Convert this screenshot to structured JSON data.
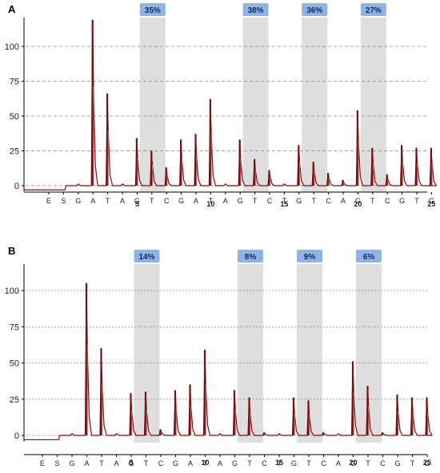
{
  "chart_data": [
    {
      "type": "line",
      "panel_label": "A",
      "ylim": [
        -3,
        120
      ],
      "yticks": [
        0,
        25,
        50,
        75,
        100
      ],
      "grid": "horizontal-dashed",
      "dispensation": [
        "E",
        "S",
        "G",
        "A",
        "T",
        "A",
        "G",
        "T",
        "C",
        "G",
        "A",
        "T",
        "A",
        "G",
        "T",
        "C",
        "T",
        "G",
        "T",
        "C",
        "A",
        "G",
        "T",
        "C",
        "G",
        "T",
        "G"
      ],
      "position_labels": [
        {
          "index": 6,
          "label": "5"
        },
        {
          "index": 11,
          "label": "10"
        },
        {
          "index": 16,
          "label": "15"
        },
        {
          "index": 21,
          "label": "20"
        },
        {
          "index": 26,
          "label": "25"
        }
      ],
      "highlights": [
        {
          "index": 7,
          "label": "35%"
        },
        {
          "index": 14,
          "label": "38%"
        },
        {
          "index": 18,
          "label": "36%"
        },
        {
          "index": 22,
          "label": "27%"
        }
      ],
      "peaks": [
        {
          "index": 3,
          "y": 119
        },
        {
          "index": 4,
          "y": 66
        },
        {
          "index": 6,
          "y": 34
        },
        {
          "index": 7,
          "y": 25
        },
        {
          "index": 8,
          "y": 13
        },
        {
          "index": 9,
          "y": 33
        },
        {
          "index": 10,
          "y": 37
        },
        {
          "index": 11,
          "y": 62
        },
        {
          "index": 13,
          "y": 33
        },
        {
          "index": 14,
          "y": 19
        },
        {
          "index": 15,
          "y": 11
        },
        {
          "index": 17,
          "y": 29
        },
        {
          "index": 18,
          "y": 17
        },
        {
          "index": 19,
          "y": 9
        },
        {
          "index": 20,
          "y": 4
        },
        {
          "index": 21,
          "y": 54
        },
        {
          "index": 22,
          "y": 27
        },
        {
          "index": 23,
          "y": 8
        },
        {
          "index": 24,
          "y": 29
        },
        {
          "index": 25,
          "y": 27
        },
        {
          "index": 26,
          "y": 27
        }
      ],
      "baseline": [
        -3,
        0
      ]
    },
    {
      "type": "line",
      "panel_label": "B",
      "ylim": [
        -3,
        110
      ],
      "yticks": [
        0,
        25,
        50,
        75,
        100
      ],
      "grid": "horizontal-dotted",
      "dispensation": [
        "E",
        "S",
        "G",
        "A",
        "T",
        "A",
        "G",
        "T",
        "C",
        "G",
        "A",
        "T",
        "A",
        "G",
        "T",
        "C",
        "T",
        "G",
        "T",
        "C",
        "A",
        "G",
        "T",
        "C",
        "G",
        "T",
        "G"
      ],
      "position_labels": [
        {
          "index": 6,
          "label": "5"
        },
        {
          "index": 11,
          "label": "10"
        },
        {
          "index": 16,
          "label": "15"
        },
        {
          "index": 21,
          "label": "20"
        },
        {
          "index": 26,
          "label": "25"
        }
      ],
      "highlights": [
        {
          "index": 7,
          "label": "14%"
        },
        {
          "index": 14,
          "label": "8%"
        },
        {
          "index": 18,
          "label": "9%"
        },
        {
          "index": 22,
          "label": "6%"
        }
      ],
      "peaks": [
        {
          "index": 3,
          "y": 105
        },
        {
          "index": 4,
          "y": 60
        },
        {
          "index": 6,
          "y": 29
        },
        {
          "index": 7,
          "y": 30
        },
        {
          "index": 8,
          "y": 4
        },
        {
          "index": 9,
          "y": 31
        },
        {
          "index": 10,
          "y": 35
        },
        {
          "index": 11,
          "y": 59
        },
        {
          "index": 13,
          "y": 31
        },
        {
          "index": 14,
          "y": 26
        },
        {
          "index": 15,
          "y": 2
        },
        {
          "index": 17,
          "y": 26
        },
        {
          "index": 18,
          "y": 24
        },
        {
          "index": 19,
          "y": 2
        },
        {
          "index": 21,
          "y": 51
        },
        {
          "index": 22,
          "y": 34
        },
        {
          "index": 23,
          "y": 2
        },
        {
          "index": 24,
          "y": 28
        },
        {
          "index": 25,
          "y": 26
        },
        {
          "index": 26,
          "y": 26
        }
      ],
      "baseline": [
        -3,
        0
      ]
    }
  ],
  "colors": {
    "trace": "#7a0f0f",
    "trace_light": "#b06a6a",
    "highlight": "#dedede",
    "pct_box": "#8fb4e3",
    "grid": "#8a8a8a",
    "axis": "#000000"
  }
}
